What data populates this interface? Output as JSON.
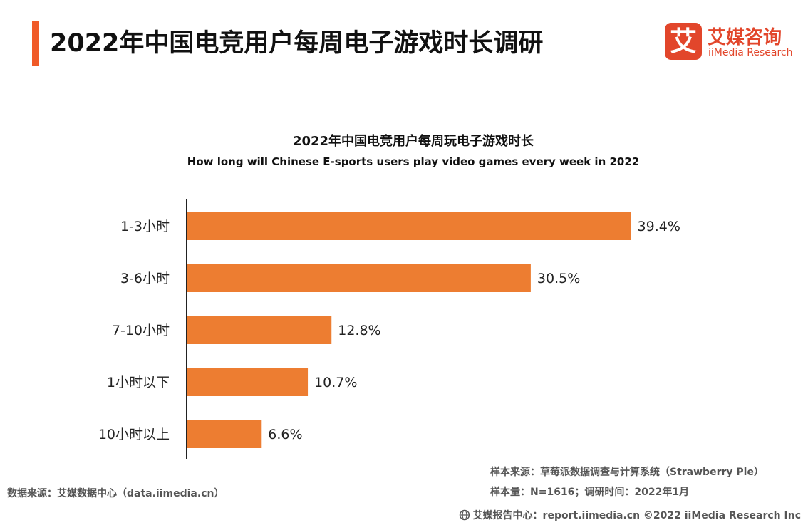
{
  "header": {
    "title": "2022年中国电竞用户每周电子游戏时长调研",
    "accent_color": "#F05A28"
  },
  "logo": {
    "mark": "艾",
    "name_cn": "艾媒咨询",
    "name_en": "iiMedia Research",
    "color": "#E2462B"
  },
  "chart_data": {
    "type": "bar",
    "orientation": "horizontal",
    "title": "2022年中国电竞用户每周玩电子游戏时长",
    "subtitle": "How long will Chinese E-sports users play video games every week in 2022",
    "categories": [
      "1-3小时",
      "3-6小时",
      "7-10小时",
      "1小时以下",
      "10小时以上"
    ],
    "values": [
      39.4,
      30.5,
      12.8,
      10.7,
      6.6
    ],
    "value_labels": [
      "39.4%",
      "30.5%",
      "12.8%",
      "10.7%",
      "6.6%"
    ],
    "unit": "%",
    "bar_color": "#ED7D31",
    "xlim": [
      0,
      40
    ],
    "xlabel": "",
    "ylabel": "",
    "grid": false
  },
  "footer": {
    "sample_source": "样本来源：草莓派数据调查与计算系统（Strawberry Pie）",
    "sample_size": "样本量：N=1616；调研时间：2022年1月",
    "data_source": "数据来源：艾媒数据中心（data.iimedia.cn）",
    "copyright": "艾媒报告中心：report.iimedia.cn   ©2022  iiMedia Research  Inc",
    "icon": "globe-icon"
  }
}
